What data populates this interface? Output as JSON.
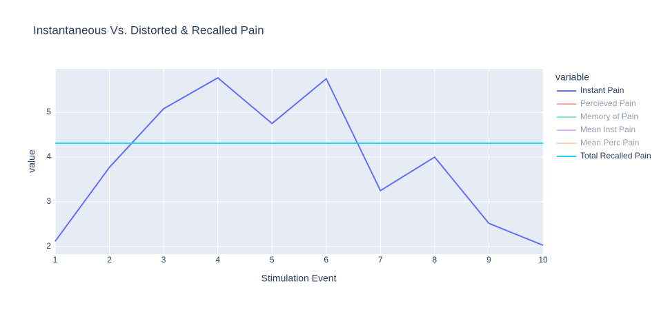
{
  "chart_data": {
    "type": "line",
    "title": "Instantaneous Vs. Distorted & Recalled Pain",
    "x_label": "Stimulation Event",
    "y_label": "value",
    "legend_title": "variable",
    "x": [
      1,
      2,
      3,
      4,
      5,
      6,
      7,
      8,
      9,
      10
    ],
    "series": [
      {
        "name": "Instant Pain",
        "color": "#636efa",
        "visible": true,
        "values": [
          2.12,
          3.77,
          5.08,
          5.77,
          4.75,
          5.75,
          3.25,
          4.0,
          2.52,
          2.03
        ]
      },
      {
        "name": "Percieved Pain",
        "color": "#EF553B",
        "visible": false
      },
      {
        "name": "Memory of Pain",
        "color": "#00cc96",
        "visible": false
      },
      {
        "name": "Mean Inst Pain",
        "color": "#ab63fa",
        "visible": false
      },
      {
        "name": "Mean Perc Pain",
        "color": "#FFA15A",
        "visible": false
      },
      {
        "name": "Total Recalled Pain",
        "color": "#19d3f3",
        "visible": true,
        "values": [
          4.31,
          4.31,
          4.31,
          4.31,
          4.31,
          4.31,
          4.31,
          4.31,
          4.31,
          4.31
        ]
      }
    ],
    "xlim": [
      1,
      10
    ],
    "xticks": [
      1,
      2,
      3,
      4,
      5,
      6,
      7,
      8,
      9,
      10
    ],
    "ylim": [
      1.83,
      5.97
    ],
    "yticks": [
      2,
      3,
      4,
      5
    ],
    "grid": true,
    "legend": "right"
  }
}
